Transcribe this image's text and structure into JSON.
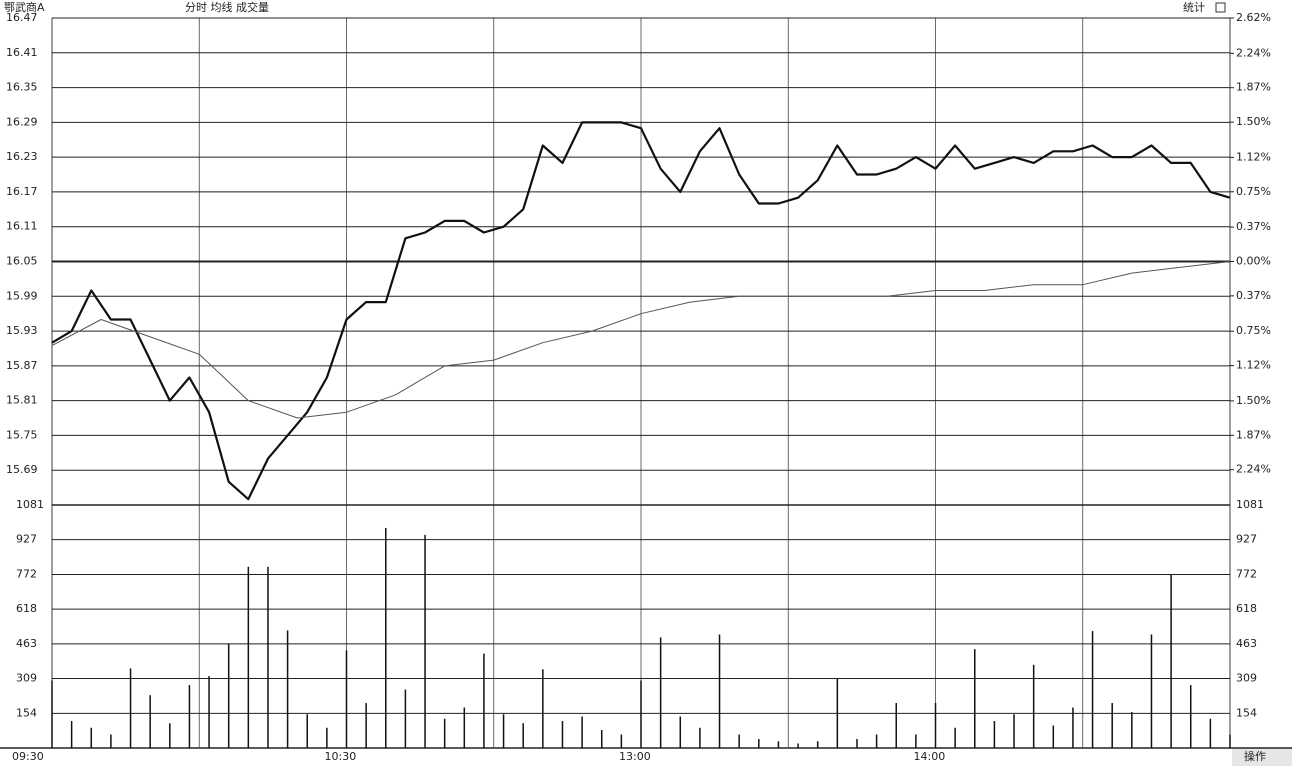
{
  "header": {
    "title": "鄂武商A",
    "tabs": "分时 均线 成交量",
    "stats": "统计"
  },
  "footer": {
    "action": "操作"
  },
  "chart_data": [
    {
      "type": "line",
      "xlim": [
        0,
        240
      ],
      "xticks": [
        {
          "value": 0,
          "label": "09:30"
        },
        {
          "value": 60,
          "label": "10:30"
        },
        {
          "value": 120,
          "label": "13:00"
        },
        {
          "value": 180,
          "label": "14:00"
        }
      ],
      "xgrid": [
        30,
        90,
        150,
        210,
        240
      ],
      "ylim": [
        15.63,
        16.47
      ],
      "yticks": [
        16.47,
        16.41,
        16.35,
        16.29,
        16.23,
        16.17,
        16.11,
        16.05,
        15.99,
        15.93,
        15.87,
        15.81,
        15.75,
        15.69
      ],
      "y2lim": [
        -2.62,
        2.62
      ],
      "y2ticks": [
        {
          "value": 2.62,
          "label": "2.62%"
        },
        {
          "value": 2.24,
          "label": "2.24%"
        },
        {
          "value": 1.87,
          "label": "1.87%"
        },
        {
          "value": 1.5,
          "label": "1.50%"
        },
        {
          "value": 1.12,
          "label": "1.12%"
        },
        {
          "value": 0.75,
          "label": "0.75%"
        },
        {
          "value": 0.37,
          "label": "0.37%"
        },
        {
          "value": 0,
          "label": "0.00%"
        },
        {
          "value": -0.37,
          "label": "0.37%"
        },
        {
          "value": -0.75,
          "label": "0.75%"
        },
        {
          "value": -1.12,
          "label": "1.12%"
        },
        {
          "value": -1.5,
          "label": "1.50%"
        },
        {
          "value": -1.87,
          "label": "1.87%"
        },
        {
          "value": -2.24,
          "label": "2.24%"
        }
      ],
      "grid": true,
      "series": [
        {
          "color": "#111111",
          "width": 2.2,
          "x": [
            0,
            4,
            8,
            12,
            16,
            20,
            24,
            28,
            32,
            36,
            40,
            44,
            48,
            52,
            56,
            60,
            64,
            68,
            72,
            76,
            80,
            84,
            88,
            92,
            96,
            100,
            104,
            108,
            112,
            116,
            120,
            124,
            128,
            132,
            136,
            140,
            144,
            148,
            152,
            156,
            160,
            164,
            168,
            172,
            176,
            180,
            184,
            188,
            192,
            196,
            200,
            204,
            208,
            212,
            216,
            220,
            224,
            228,
            232,
            236,
            240
          ],
          "values": [
            15.91,
            15.93,
            16.0,
            15.95,
            15.95,
            15.88,
            15.81,
            15.85,
            15.79,
            15.67,
            15.64,
            15.71,
            15.75,
            15.79,
            15.85,
            15.95,
            15.98,
            15.98,
            16.09,
            16.1,
            16.12,
            16.12,
            16.1,
            16.11,
            16.14,
            16.25,
            16.22,
            16.29,
            16.29,
            16.29,
            16.28,
            16.21,
            16.17,
            16.24,
            16.28,
            16.2,
            16.15,
            16.15,
            16.16,
            16.19,
            16.25,
            16.2,
            16.2,
            16.21,
            16.23,
            16.21,
            16.25,
            16.21,
            16.22,
            16.23,
            16.22,
            16.24,
            16.24,
            16.25,
            16.23,
            16.23,
            16.25,
            16.22,
            16.22,
            16.17,
            16.16
          ]
        },
        {
          "color": "#555555",
          "width": 1,
          "x": [
            0,
            10,
            20,
            30,
            40,
            50,
            60,
            70,
            80,
            90,
            100,
            110,
            120,
            130,
            140,
            150,
            160,
            170,
            180,
            190,
            200,
            210,
            220,
            230,
            240
          ],
          "values": [
            15.905,
            15.95,
            15.92,
            15.89,
            15.81,
            15.78,
            15.79,
            15.82,
            15.87,
            15.88,
            15.91,
            15.93,
            15.96,
            15.98,
            15.99,
            15.99,
            15.99,
            15.99,
            16.0,
            16.0,
            16.01,
            16.01,
            16.03,
            16.04,
            16.05
          ]
        }
      ]
    },
    {
      "type": "bar",
      "xlim": [
        0,
        240
      ],
      "ylim": [
        0,
        1081
      ],
      "yticks": [
        1081,
        927,
        772,
        618,
        463,
        309,
        154
      ],
      "color": "#111111",
      "x": [
        0,
        4,
        8,
        12,
        16,
        20,
        24,
        28,
        32,
        36,
        40,
        44,
        48,
        52,
        56,
        60,
        64,
        68,
        72,
        76,
        80,
        84,
        88,
        92,
        96,
        100,
        104,
        108,
        112,
        116,
        120,
        124,
        128,
        132,
        136,
        140,
        144,
        148,
        152,
        156,
        160,
        164,
        168,
        172,
        176,
        180,
        184,
        188,
        192,
        196,
        200,
        204,
        208,
        212,
        216,
        220,
        224,
        228,
        232,
        236,
        240
      ],
      "values": [
        300,
        120,
        90,
        60,
        354,
        235,
        110,
        280,
        320,
        465,
        806,
        806,
        523,
        150,
        90,
        434,
        200,
        979,
        260,
        948,
        130,
        180,
        420,
        150,
        110,
        350,
        120,
        140,
        80,
        60,
        300,
        492,
        140,
        90,
        505,
        60,
        40,
        30,
        20,
        30,
        310,
        40,
        60,
        200,
        60,
        200,
        90,
        440,
        120,
        150,
        370,
        100,
        180,
        520,
        200,
        160,
        505,
        771,
        280,
        130,
        60
      ]
    }
  ]
}
